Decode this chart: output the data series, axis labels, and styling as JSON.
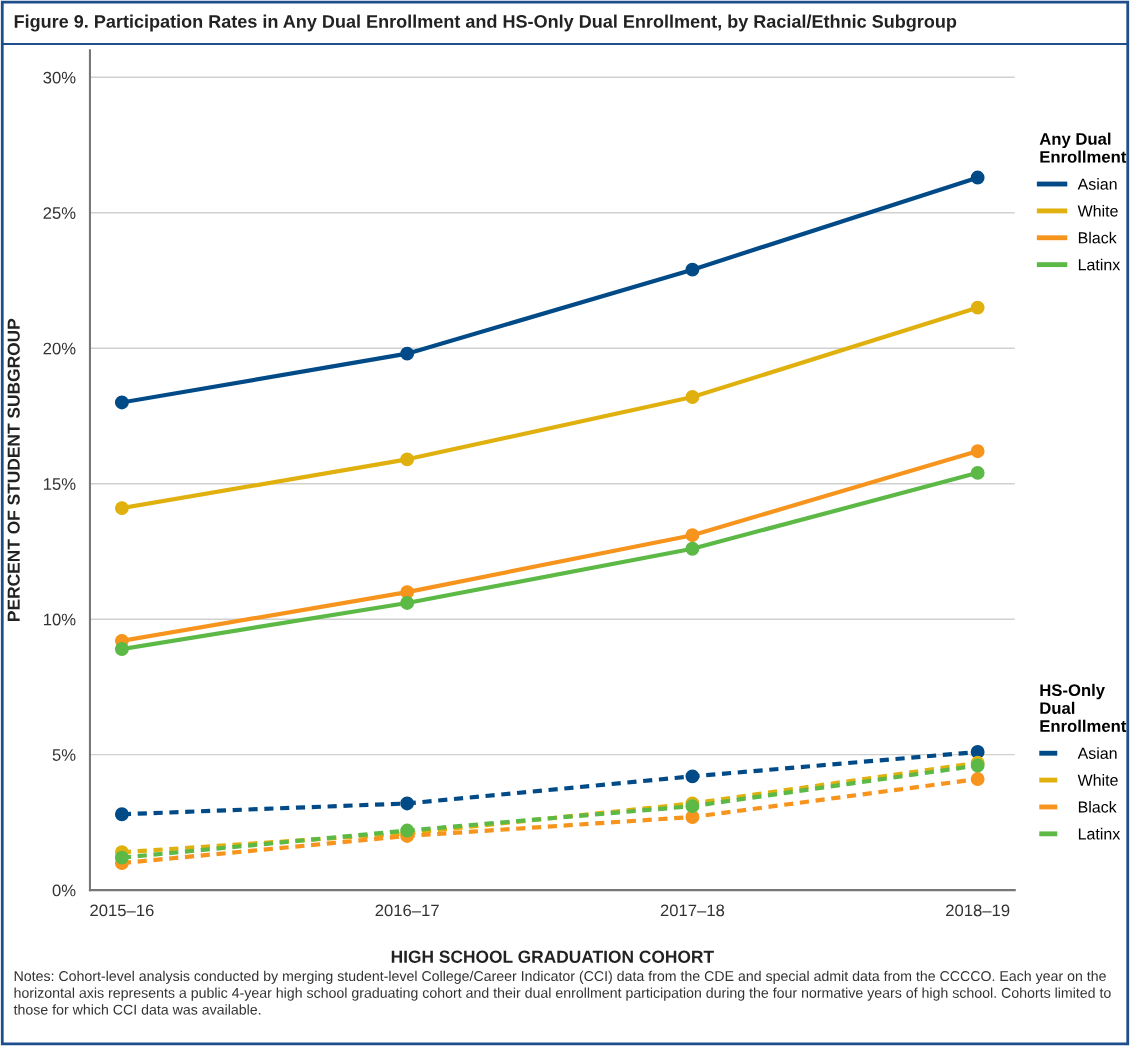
{
  "chart_data": {
    "type": "line",
    "title": "Figure 9. Participation Rates in Any Dual Enrollment and HS-Only Dual Enrollment, by Racial/Ethnic Subgroup",
    "xlabel": "HIGH SCHOOL GRADUATION COHORT",
    "ylabel": "PERCENT OF STUDENT SUBGROUP",
    "categories": [
      "2015–16",
      "2016–17",
      "2017–18",
      "2018–19"
    ],
    "legend_title": [
      "Any Dual\nEnrollment",
      "HS-Only\nDual\nEnrollment"
    ],
    "series": [
      {
        "name": "Asian",
        "color": "#004b87",
        "line_style": "solid",
        "values": [
          18.0,
          19.8,
          22.9,
          26.3
        ]
      },
      {
        "name": "White",
        "color": "#e0b10e",
        "line_style": "solid",
        "values": [
          14.1,
          15.9,
          18.2,
          21.5
        ]
      },
      {
        "name": "Black",
        "color": "#f7941d",
        "line_style": "solid",
        "values": [
          9.2,
          11.0,
          13.1,
          16.2
        ]
      },
      {
        "name": "Latinx",
        "color": "#5cb946",
        "line_style": "solid",
        "values": [
          8.9,
          10.6,
          12.6,
          15.4
        ]
      },
      {
        "name": "Asian",
        "color": "#004b87",
        "line_style": "dashed",
        "values": [
          2.8,
          3.2,
          4.2,
          5.1
        ]
      },
      {
        "name": "White",
        "color": "#e0b10e",
        "line_style": "dashed",
        "values": [
          1.4,
          2.1,
          3.2,
          4.7
        ]
      },
      {
        "name": "Black",
        "color": "#f7941d",
        "line_style": "dashed",
        "values": [
          1.0,
          2.0,
          2.7,
          4.1
        ]
      },
      {
        "name": "Latinx",
        "color": "#5cb946",
        "line_style": "dashed",
        "values": [
          1.2,
          2.2,
          3.1,
          4.6
        ]
      }
    ],
    "ylim": [
      0,
      31
    ],
    "yticks": [
      {
        "value": 0,
        "label": "0%"
      },
      {
        "value": 5,
        "label": "5%"
      },
      {
        "value": 10,
        "label": "10%"
      },
      {
        "value": 15,
        "label": "15%"
      },
      {
        "value": 20,
        "label": "20%"
      },
      {
        "value": 25,
        "label": "25%"
      },
      {
        "value": 30,
        "label": "30%"
      }
    ],
    "grid": "y",
    "legend": "right",
    "marker": "circle",
    "annotations": [
      "Notes: Cohort-level analysis conducted by merging student-level College/Career Indicator (CCI) data from the CDE and special admit data from the CCCCO. Each year on the horizontal axis represents a public 4-year high school graduating cohort and their dual enrollment participation during the four normative years of high school. Cohorts limited to those for which CCI data was available."
    ]
  }
}
